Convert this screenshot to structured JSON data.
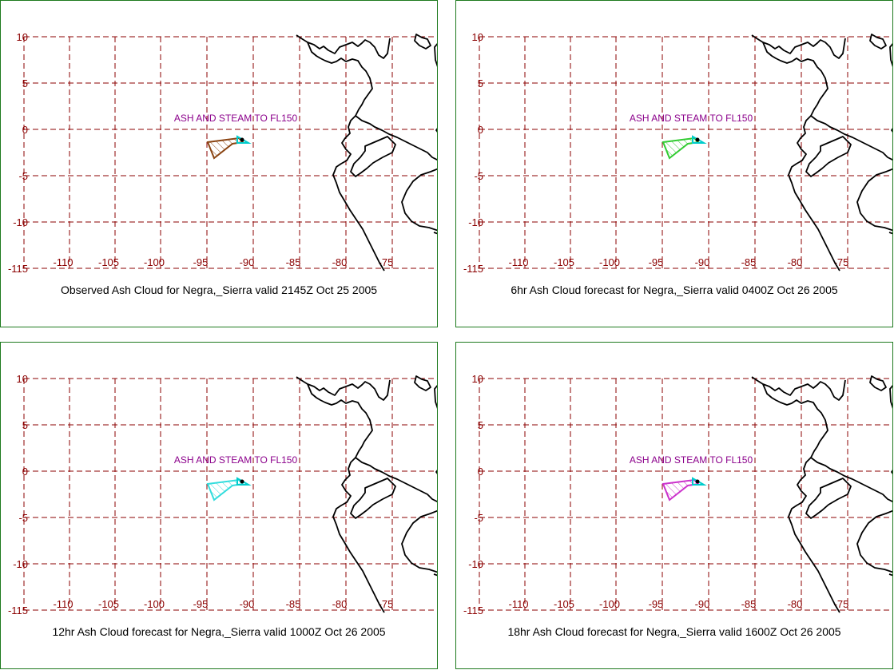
{
  "panels": [
    {
      "caption": "Observed Ash Cloud for Negra,_Sierra valid 2145Z Oct 25 2005",
      "annotation": "ASH AND STEAM TO FL150",
      "cloud_color": "#8b4513"
    },
    {
      "caption": "6hr Ash Cloud forecast for Negra,_Sierra valid 0400Z Oct 26 2005",
      "annotation": "ASH AND STEAM TO FL150",
      "cloud_color": "#33cc33"
    },
    {
      "caption": "12hr Ash Cloud forecast for Negra,_Sierra valid 1000Z Oct 26 2005",
      "annotation": "ASH AND STEAM TO FL150",
      "cloud_color": "#33dddd"
    },
    {
      "caption": "18hr Ash Cloud forecast for Negra,_Sierra valid 1600Z Oct 26 2005",
      "annotation": "ASH AND STEAM TO FL150",
      "cloud_color": "#cc33cc"
    }
  ],
  "map": {
    "lat_labels": [
      "10",
      "5",
      "0",
      "-5",
      "-10",
      "-115"
    ],
    "lon_labels": [
      "-110",
      "-105",
      "-100",
      "-95",
      "-90",
      "-85",
      "-80",
      "-75"
    ],
    "grid_color": "#8b0000",
    "volcano_marker_color": "#00cccc"
  }
}
